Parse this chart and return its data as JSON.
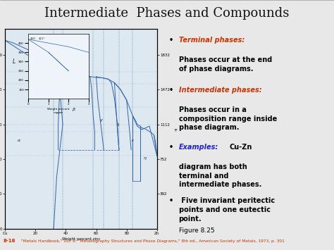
{
  "title": "Intermediate  Phases and Compounds",
  "title_fontsize": 13,
  "title_bg_color": "#c8cce0",
  "slide_bg_color": "#e8e8e8",
  "content_bg_color": "#ffffff",
  "bullet1_label": "Terminal phases:",
  "bullet1_label_color": "#cc3300",
  "bullet1_text": "Phases occur at the end\nof phase diagrams.",
  "bullet2_label": "Intermediate phases:",
  "bullet2_label_color": "#cc3300",
  "bullet2_text": "Phases occur in a\ncomposition range inside\nphase diagram.",
  "bullet3_label": "Examples:",
  "bullet3_label_color": "#2222cc",
  "bullet3_text": " Cu-Zn\ndiagram has both\nterminal and\nintermediate phases.",
  "bullet4_text": " Five invariant peritectic\npoints and one eutectic\npoint.",
  "figure_caption": "Figure 8.25",
  "footer_number": "8-18",
  "footer_rest": "  \"Metals Handbook,\" vol. 8: \"Metallography Structures and Phase Diagrams,\" 8th ed., American Society of Metals, 1973, p. 301",
  "footer_color": "#cc3300",
  "diagram_line_color": "#3366aa",
  "diagram_bg": "#dde8f0"
}
